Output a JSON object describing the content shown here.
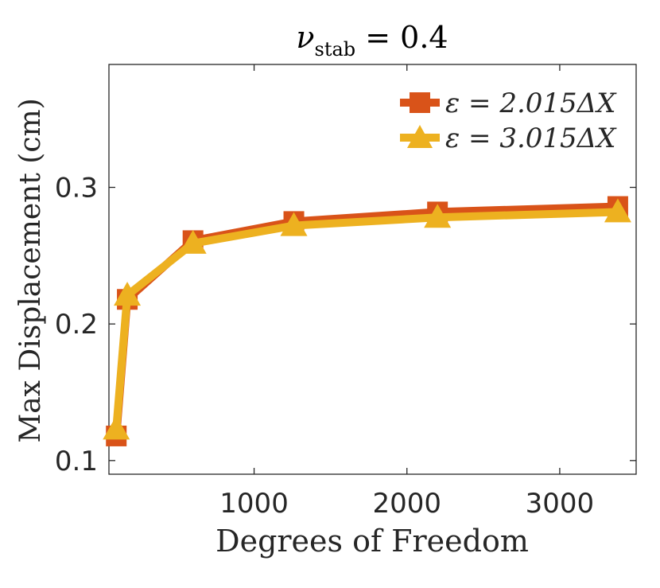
{
  "chart_data": {
    "type": "line",
    "title": "ν",
    "title_sub": "stab",
    "title_rest": " = 0.4",
    "xlabel": "Degrees of Freedom",
    "ylabel": "Max Displacement (cm)",
    "xlim": [
      50,
      3500
    ],
    "ylim": [
      0.09,
      0.39
    ],
    "xticks": [
      1000,
      2000,
      3000
    ],
    "yticks": [
      0.1,
      0.2,
      0.3
    ],
    "xtick_labels": [
      "1000",
      "2000",
      "3000"
    ],
    "ytick_labels": [
      "0.1",
      "0.2",
      "0.3"
    ],
    "legend_position": "top-right",
    "series": [
      {
        "name": "ε = 2.015ΔX",
        "marker": "square",
        "color": "#D95319",
        "x": [
          98,
          170,
          600,
          1260,
          2200,
          3380
        ],
        "y": [
          0.118,
          0.218,
          0.261,
          0.275,
          0.282,
          0.286
        ]
      },
      {
        "name": "ε = 3.015ΔX",
        "marker": "triangle",
        "color": "#EDB120",
        "x": [
          98,
          170,
          600,
          1260,
          2200,
          3380
        ],
        "y": [
          0.123,
          0.221,
          0.259,
          0.272,
          0.278,
          0.282
        ]
      }
    ]
  }
}
